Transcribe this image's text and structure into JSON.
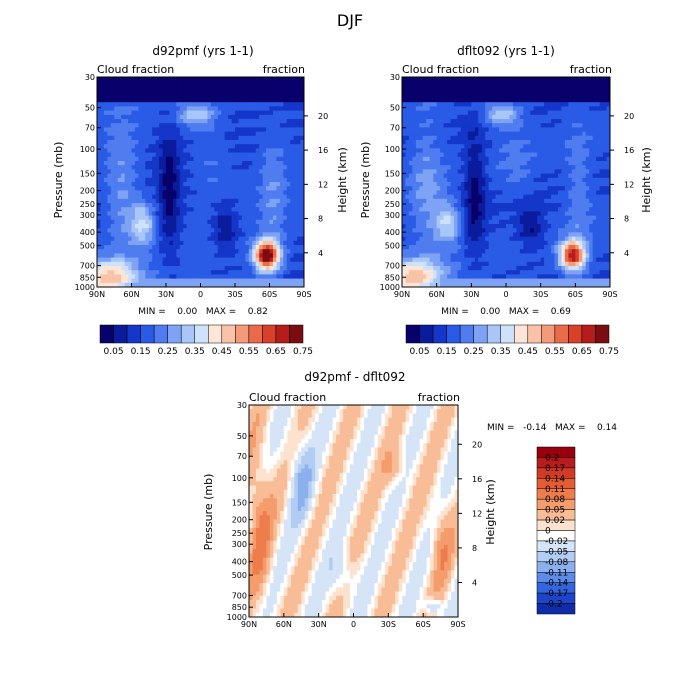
{
  "figure": {
    "title": "DJF"
  },
  "chart_data": [
    {
      "type": "heatmap",
      "id": "p1",
      "title": "d92pmf (yrs 1-1)",
      "left_label": "Cloud fraction",
      "right_label": "fraction",
      "ylabel": "Pressure (mb)",
      "y2label": "Height (km)",
      "x_ticks": [
        "90N",
        "60N",
        "30N",
        "0",
        "30S",
        "60S",
        "90S"
      ],
      "y_ticks": [
        "30",
        "50",
        "70",
        "100",
        "150",
        "200",
        "250",
        "300",
        "400",
        "500",
        "700",
        "850",
        "1000"
      ],
      "y2_ticks": [
        "20",
        "16",
        "12",
        "8",
        "4"
      ],
      "stats": "MIN =    0.00   MAX =    0.82",
      "min": 0.0,
      "max": 0.82,
      "colorbar": {
        "labels": [
          "0.05",
          "0.15",
          "0.25",
          "0.35",
          "0.45",
          "0.55",
          "0.65",
          "0.75"
        ],
        "colors": [
          "#08006b",
          "#0a1c9c",
          "#1436c9",
          "#2a5be6",
          "#4f7df0",
          "#7ea3f5",
          "#a9c6f8",
          "#cfe2fb",
          "#fde6d8",
          "#f9c3a7",
          "#f39a78",
          "#ea6b4a",
          "#d9402a",
          "#b61d1a",
          "#7b0d12"
        ]
      }
    },
    {
      "type": "heatmap",
      "id": "p2",
      "title": "dflt092 (yrs 1-1)",
      "left_label": "Cloud fraction",
      "right_label": "fraction",
      "ylabel": "Pressure (mb)",
      "y2label": "Height (km)",
      "x_ticks": [
        "90N",
        "60N",
        "30N",
        "0",
        "30S",
        "60S",
        "90S"
      ],
      "y_ticks": [
        "30",
        "50",
        "70",
        "100",
        "150",
        "200",
        "250",
        "300",
        "400",
        "500",
        "700",
        "850",
        "1000"
      ],
      "y2_ticks": [
        "20",
        "16",
        "12",
        "8",
        "4"
      ],
      "stats": "MIN =    0.00   MAX =    0.69",
      "min": 0.0,
      "max": 0.69,
      "colorbar": {
        "labels": [
          "0.05",
          "0.15",
          "0.25",
          "0.35",
          "0.45",
          "0.55",
          "0.65",
          "0.75"
        ],
        "colors": [
          "#08006b",
          "#0a1c9c",
          "#1436c9",
          "#2a5be6",
          "#4f7df0",
          "#7ea3f5",
          "#a9c6f8",
          "#cfe2fb",
          "#fde6d8",
          "#f9c3a7",
          "#f39a78",
          "#ea6b4a",
          "#d9402a",
          "#b61d1a",
          "#7b0d12"
        ]
      }
    },
    {
      "type": "heatmap",
      "id": "p3",
      "title": "d92pmf - dflt092",
      "left_label": "Cloud fraction",
      "right_label": "fraction",
      "ylabel": "Pressure (mb)",
      "y2label": "Height (km)",
      "x_ticks": [
        "90N",
        "60N",
        "30N",
        "0",
        "30S",
        "60S",
        "90S"
      ],
      "y_ticks": [
        "30",
        "50",
        "70",
        "100",
        "150",
        "200",
        "250",
        "300",
        "400",
        "500",
        "700",
        "850",
        "1000"
      ],
      "y2_ticks": [
        "20",
        "16",
        "12",
        "8",
        "4"
      ],
      "stats": "MIN =   -0.14   MAX =    0.14",
      "min": -0.14,
      "max": 0.14,
      "colorbar": {
        "labels": [
          "0.2",
          "0.17",
          "0.14",
          "0.11",
          "0.08",
          "0.05",
          "0.02",
          "0",
          "-0.02",
          "-0.05",
          "-0.08",
          "-0.11",
          "-0.14",
          "-0.17",
          "-0.2"
        ],
        "colors": [
          "#99000d",
          "#b81c1c",
          "#d13a26",
          "#e35c34",
          "#ef7d4c",
          "#f59c6c",
          "#f8bd97",
          "#fde3cf",
          "#ffffff",
          "#d6e4f8",
          "#b3ccf3",
          "#8cb0ee",
          "#5c8be8",
          "#3565de",
          "#1f44cc",
          "#102ca8"
        ]
      }
    }
  ]
}
